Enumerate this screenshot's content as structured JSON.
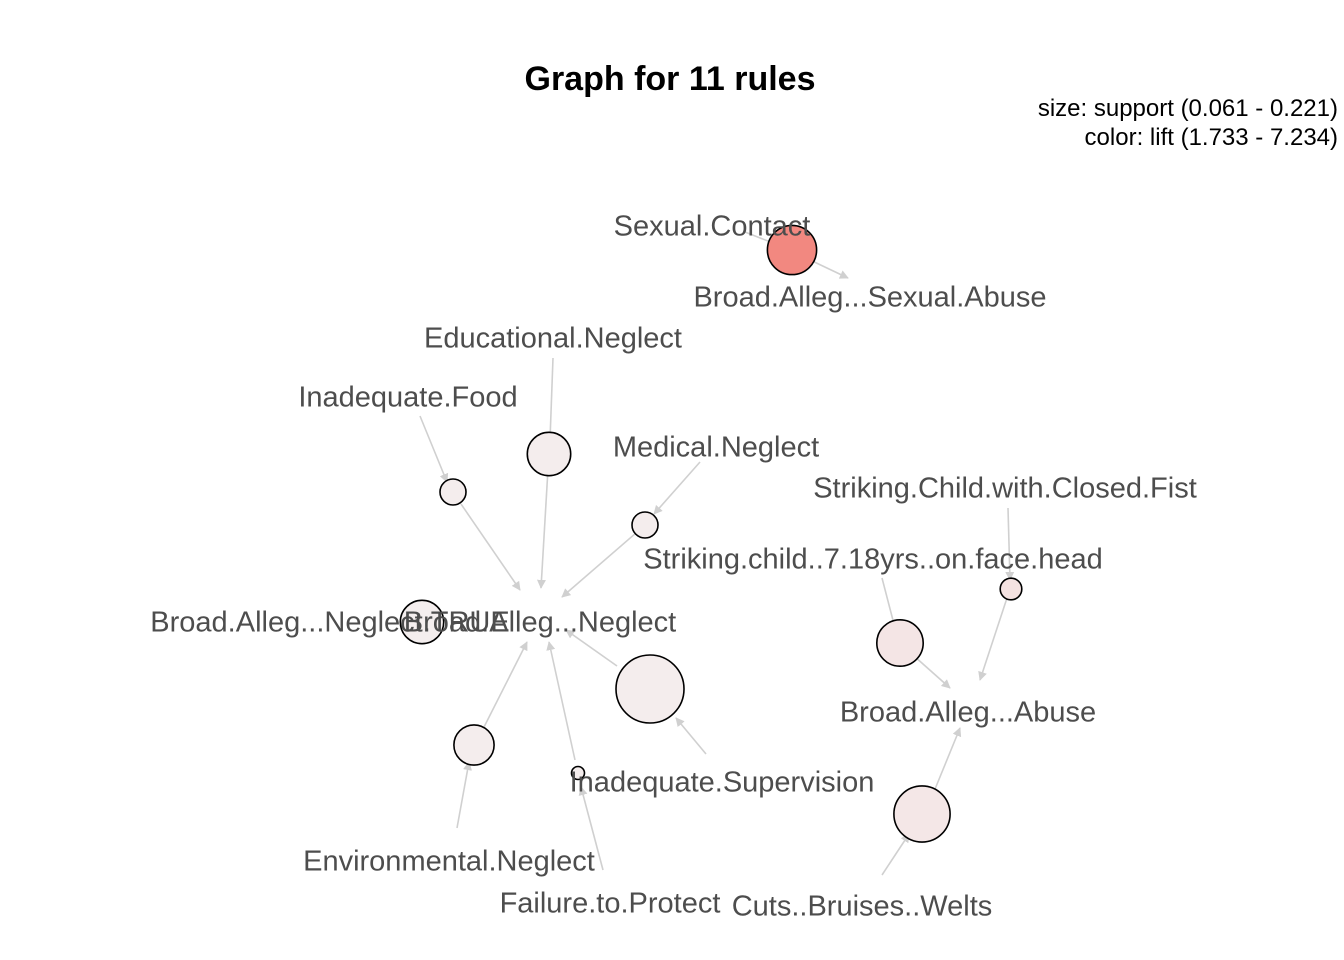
{
  "title": "Graph for 11 rules",
  "legend": {
    "size": "size: support (0.061 - 0.221)",
    "color": "color: lift (1.733 - 7.234)"
  },
  "colors": {
    "edge": "#d0d0d0",
    "label": "#4d4d4d",
    "lift_low": "#f4eeee",
    "lift_high": "#f28880"
  },
  "items": [
    {
      "id": "sexual-contact",
      "label": "Sexual.Contact"
    },
    {
      "id": "broad-sexual-abuse",
      "label": "Broad.Alleg...Sexual.Abuse"
    },
    {
      "id": "educational-neglect",
      "label": "Educational.Neglect"
    },
    {
      "id": "inadequate-food",
      "label": "Inadequate.Food"
    },
    {
      "id": "medical-neglect",
      "label": "Medical.Neglect"
    },
    {
      "id": "striking-closed-fist",
      "label": "Striking.Child.with.Closed.Fist"
    },
    {
      "id": "striking-face-head",
      "label": "Striking.child..7.18yrs..on.face.head"
    },
    {
      "id": "broad-neglect-true",
      "label": "Broad.Alleg...Neglect.TRUE"
    },
    {
      "id": "broad-neglect",
      "label": "Broad.Alleg...Neglect"
    },
    {
      "id": "broad-abuse",
      "label": "Broad.Alleg...Abuse"
    },
    {
      "id": "inadequate-supervision",
      "label": "Inadequate.Supervision"
    },
    {
      "id": "environmental-neglect",
      "label": "Environmental.Neglect"
    },
    {
      "id": "failure-to-protect",
      "label": "Failure.to.Protect"
    },
    {
      "id": "cuts-bruises-welts",
      "label": "Cuts..Bruises..Welts"
    }
  ],
  "rules": [
    {
      "id": "rule-sexual-contact",
      "lhs": [
        "sexual-contact"
      ],
      "rhs": "broad-sexual-abuse",
      "support": 0.13,
      "lift": 7.234
    },
    {
      "id": "rule-educational-neglect",
      "lhs": [
        "educational-neglect"
      ],
      "rhs": "broad-neglect",
      "support": 0.11,
      "lift": 1.8
    },
    {
      "id": "rule-inadequate-food",
      "lhs": [
        "inadequate-food"
      ],
      "rhs": "broad-neglect",
      "support": 0.07,
      "lift": 1.8
    },
    {
      "id": "rule-medical-neglect",
      "lhs": [
        "medical-neglect"
      ],
      "rhs": "broad-neglect",
      "support": 0.07,
      "lift": 1.8
    },
    {
      "id": "rule-neglect-true",
      "lhs": [
        "broad-neglect-true"
      ],
      "rhs": "broad-neglect",
      "support": 0.11,
      "lift": 1.733
    },
    {
      "id": "rule-inadequate-supervision",
      "lhs": [
        "inadequate-supervision"
      ],
      "rhs": "broad-neglect",
      "support": 0.221,
      "lift": 1.8
    },
    {
      "id": "rule-environmental-neglect",
      "lhs": [
        "environmental-neglect"
      ],
      "rhs": "broad-neglect",
      "support": 0.1,
      "lift": 1.8
    },
    {
      "id": "rule-failure-to-protect",
      "lhs": [
        "failure-to-protect"
      ],
      "rhs": "broad-neglect",
      "support": 0.061,
      "lift": 1.8
    },
    {
      "id": "rule-striking-closed-fist",
      "lhs": [
        "striking-closed-fist"
      ],
      "rhs": "broad-abuse",
      "support": 0.065,
      "lift": 2.4
    },
    {
      "id": "rule-striking-face-head",
      "lhs": [
        "striking-face-head"
      ],
      "rhs": "broad-abuse",
      "support": 0.12,
      "lift": 2.2
    },
    {
      "id": "rule-cuts-bruises-welts",
      "lhs": [
        "cuts-bruises-welts"
      ],
      "rhs": "broad-abuse",
      "support": 0.16,
      "lift": 2.1
    }
  ]
}
